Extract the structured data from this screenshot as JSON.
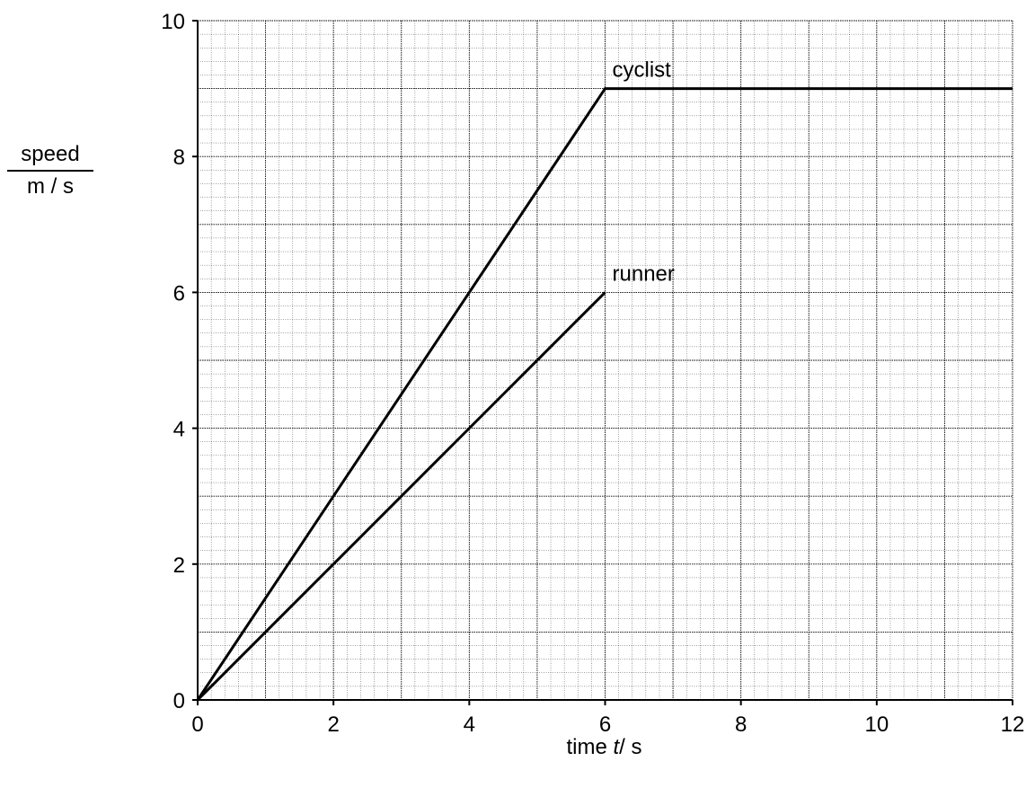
{
  "chart_data": {
    "type": "line",
    "xlabel": {
      "prefix": "time ",
      "var": "t",
      "suffix": "/ s"
    },
    "ylabel": {
      "numerator": "speed",
      "denominator": "m / s"
    },
    "xlim": [
      0,
      12
    ],
    "ylim": [
      0,
      10
    ],
    "x_ticks": [
      "0",
      "2",
      "4",
      "6",
      "8",
      "10",
      "12"
    ],
    "y_ticks": [
      "0",
      "2",
      "4",
      "6",
      "8",
      "10"
    ],
    "grid": {
      "major_step_x": 1,
      "major_step_y": 1,
      "minor_divisions": 5
    },
    "series": [
      {
        "name": "cyclist",
        "points": [
          [
            0,
            0
          ],
          [
            6,
            9
          ],
          [
            12,
            9
          ]
        ]
      },
      {
        "name": "runner",
        "points": [
          [
            0,
            0
          ],
          [
            6,
            6
          ]
        ]
      }
    ]
  }
}
